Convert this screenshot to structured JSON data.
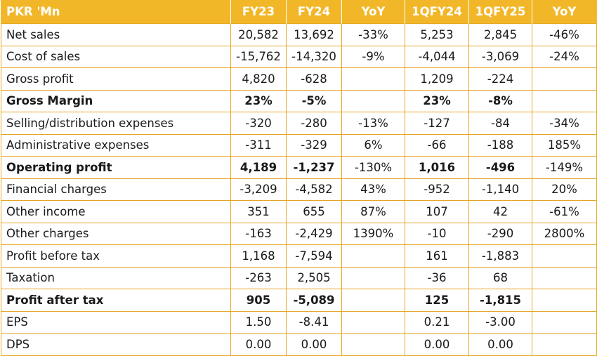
{
  "colors": {
    "header_bg": "#f2b728",
    "header_text": "#ffffff",
    "grid": "#e4a624"
  },
  "columns": [
    "PKR 'Mn",
    "FY23",
    "FY24",
    "YoY",
    "1QFY24",
    "1QFY25",
    "YoY"
  ],
  "rows": [
    {
      "label": "Net sales",
      "fy23": "20,582",
      "fy24": "13,692",
      "yoy1": "-33%",
      "q24": "5,253",
      "q25": "2,845",
      "yoy2": "-46%"
    },
    {
      "label": "Cost of sales",
      "fy23": "-15,762",
      "fy24": "-14,320",
      "yoy1": "-9%",
      "q24": "-4,044",
      "q25": "-3,069",
      "yoy2": "-24%"
    },
    {
      "label": "Gross profit",
      "fy23": "4,820",
      "fy24": "-628",
      "yoy1": "",
      "q24": "1,209",
      "q25": "-224",
      "yoy2": ""
    },
    {
      "label": "Gross Margin",
      "fy23": "23%",
      "fy24": "-5%",
      "yoy1": "",
      "q24": "23%",
      "q25": "-8%",
      "yoy2": ""
    },
    {
      "label": "Selling/distribution expenses",
      "fy23": "-320",
      "fy24": "-280",
      "yoy1": "-13%",
      "q24": "-127",
      "q25": "-84",
      "yoy2": "-34%"
    },
    {
      "label": "Administrative expenses",
      "fy23": "-311",
      "fy24": "-329",
      "yoy1": "6%",
      "q24": "-66",
      "q25": "-188",
      "yoy2": "185%"
    },
    {
      "label": "Operating profit",
      "fy23": "4,189",
      "fy24": "-1,237",
      "yoy1": "-130%",
      "q24": "1,016",
      "q25": "-496",
      "yoy2": "-149%"
    },
    {
      "label": "Financial charges",
      "fy23": "-3,209",
      "fy24": "-4,582",
      "yoy1": "43%",
      "q24": "-952",
      "q25": "-1,140",
      "yoy2": "20%"
    },
    {
      "label": "Other income",
      "fy23": "351",
      "fy24": "655",
      "yoy1": "87%",
      "q24": "107",
      "q25": "42",
      "yoy2": "-61%"
    },
    {
      "label": "Other charges",
      "fy23": "-163",
      "fy24": "-2,429",
      "yoy1": "1390%",
      "q24": "-10",
      "q25": "-290",
      "yoy2": "2800%"
    },
    {
      "label": "Profit before tax",
      "fy23": "1,168",
      "fy24": "-7,594",
      "yoy1": "",
      "q24": "161",
      "q25": "-1,883",
      "yoy2": ""
    },
    {
      "label": "Taxation",
      "fy23": "-263",
      "fy24": "2,505",
      "yoy1": "",
      "q24": "-36",
      "q25": "68",
      "yoy2": ""
    },
    {
      "label": "Profit after tax",
      "fy23": "905",
      "fy24": "-5,089",
      "yoy1": "",
      "q24": "125",
      "q25": "-1,815",
      "yoy2": ""
    },
    {
      "label": "EPS",
      "fy23": "1.50",
      "fy24": "-8.41",
      "yoy1": "",
      "q24": "0.21",
      "q25": "-3.00",
      "yoy2": ""
    },
    {
      "label": "DPS",
      "fy23": "0.00",
      "fy24": "0.00",
      "yoy1": "",
      "q24": "0.00",
      "q25": "0.00",
      "yoy2": ""
    }
  ]
}
